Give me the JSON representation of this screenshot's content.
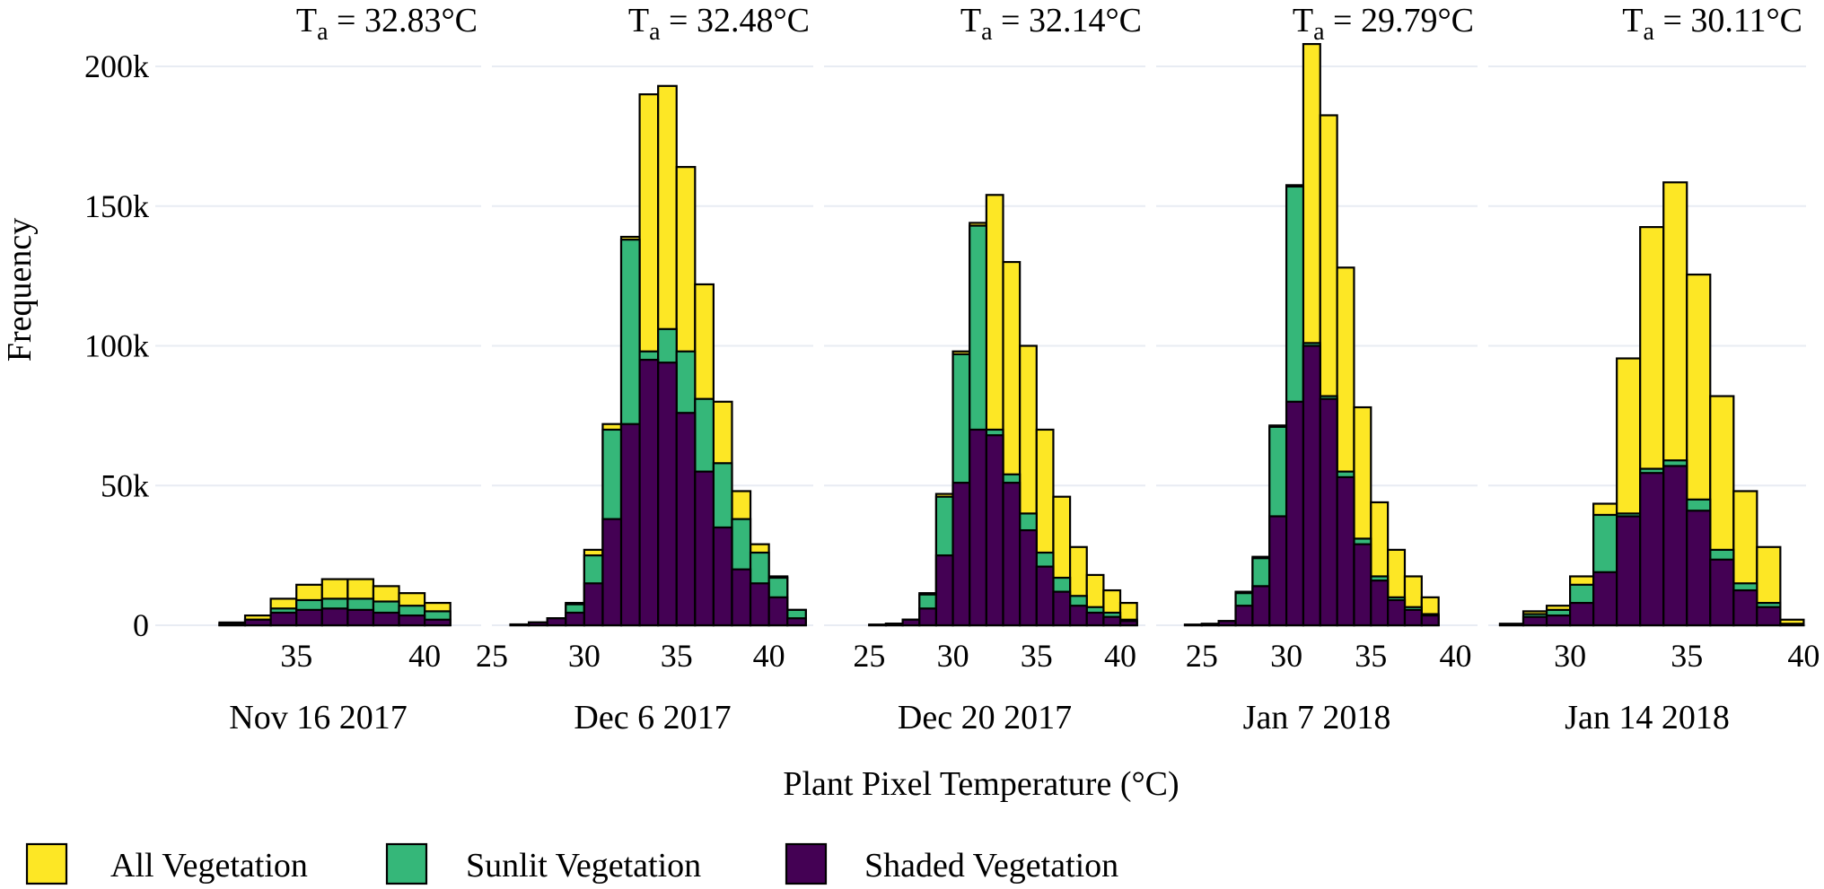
{
  "chart_data": {
    "type": "bar",
    "subtype": "overlaid-histogram",
    "xlabel": "Plant Pixel Temperature (°C)",
    "ylabel": "Frequency",
    "ylim": [
      0,
      210000
    ],
    "yticks": [
      0,
      50000,
      100000,
      150000,
      200000
    ],
    "ytick_labels": [
      "0",
      "50k",
      "100k",
      "150k",
      "200k"
    ],
    "bin_width": 1,
    "legend": [
      {
        "name": "All Vegetation",
        "color": "#fde725"
      },
      {
        "name": "Sunlit Vegetation",
        "color": "#35b779"
      },
      {
        "name": "Shaded Vegetation",
        "color": "#440154"
      }
    ],
    "panels": [
      {
        "date": "Nov 16 2017",
        "ta_prefix": "T",
        "ta_sub": "a",
        "ta_value": " = 32.83°C",
        "xlim": [
          29.5,
          42.2
        ],
        "xticks": [
          35,
          40
        ],
        "bin_starts": [
          30,
          31,
          32,
          33,
          34,
          35,
          36,
          37,
          38,
          39,
          40,
          41
        ],
        "all": [
          0,
          0,
          1000,
          3500,
          9500,
          14500,
          16500,
          16500,
          14000,
          11500,
          8000,
          0
        ],
        "sunlit": [
          0,
          0,
          500,
          2000,
          6000,
          9000,
          9500,
          9500,
          8500,
          7000,
          5000,
          0
        ],
        "shaded": [
          0,
          0,
          500,
          2000,
          4500,
          5500,
          6000,
          5500,
          4500,
          3500,
          2000,
          0
        ]
      },
      {
        "date": "Dec 6 2017",
        "ta_prefix": "T",
        "ta_sub": "a",
        "ta_value": " = 32.48°C",
        "xlim": [
          25,
          42.4
        ],
        "xticks": [
          25,
          30,
          35,
          40
        ],
        "bin_starts": [
          26,
          27,
          28,
          29,
          30,
          31,
          32,
          33,
          34,
          35,
          36,
          37,
          38,
          39,
          40,
          41
        ],
        "all": [
          300,
          1000,
          2500,
          8000,
          27000,
          72000,
          139000,
          190000,
          193000,
          164000,
          122000,
          80000,
          48000,
          29000,
          17500,
          5500
        ],
        "sunlit": [
          300,
          1000,
          2500,
          7500,
          25000,
          70000,
          138000,
          98000,
          106000,
          98000,
          81000,
          58000,
          38000,
          26000,
          17000,
          5500
        ],
        "shaded": [
          300,
          1000,
          2500,
          4500,
          15000,
          38000,
          72000,
          95000,
          94000,
          76000,
          55000,
          35000,
          20000,
          15000,
          10000,
          2500
        ]
      },
      {
        "date": "Dec 20 2017",
        "ta_prefix": "T",
        "ta_sub": "a",
        "ta_value": " = 32.14°C",
        "xlim": [
          22.3,
          41.5
        ],
        "xticks": [
          25,
          30,
          35,
          40
        ],
        "bin_starts": [
          23,
          24,
          25,
          26,
          27,
          28,
          29,
          30,
          31,
          32,
          33,
          34,
          35,
          36,
          37,
          38,
          39,
          40
        ],
        "all": [
          0,
          0,
          200,
          600,
          2000,
          11500,
          47000,
          98000,
          144000,
          154000,
          130000,
          100000,
          70000,
          46000,
          28000,
          18000,
          12500,
          8000
        ],
        "sunlit": [
          0,
          0,
          200,
          600,
          2000,
          11000,
          46000,
          97000,
          143000,
          70000,
          54000,
          40000,
          26000,
          17000,
          10500,
          6500,
          4500,
          2000
        ],
        "shaded": [
          0,
          0,
          200,
          600,
          2000,
          6000,
          25000,
          51000,
          70000,
          68000,
          51000,
          34000,
          21000,
          12000,
          7000,
          4500,
          3000,
          1500
        ]
      },
      {
        "date": "Jan 7 2018",
        "ta_prefix": "T",
        "ta_sub": "a",
        "ta_value": " = 29.79°C",
        "xlim": [
          22.3,
          41.3
        ],
        "xticks": [
          25,
          30,
          35,
          40
        ],
        "bin_starts": [
          23,
          24,
          25,
          26,
          27,
          28,
          29,
          30,
          31,
          32,
          33,
          34,
          35,
          36,
          37,
          38
        ],
        "all": [
          0,
          200,
          500,
          1500,
          12000,
          24500,
          71500,
          157500,
          208000,
          182500,
          128000,
          78000,
          44000,
          27000,
          17500,
          10000
        ],
        "sunlit": [
          0,
          200,
          500,
          1500,
          11500,
          24000,
          71000,
          157000,
          101000,
          82000,
          55000,
          31000,
          17500,
          10000,
          6500,
          4000
        ],
        "shaded": [
          0,
          200,
          500,
          1500,
          7000,
          14000,
          39000,
          80000,
          100000,
          81000,
          53000,
          29000,
          16000,
          9000,
          5500,
          3500
        ]
      },
      {
        "date": "Jan 14 2018",
        "ta_prefix": "T",
        "ta_sub": "a",
        "ta_value": " = 30.11°C",
        "xlim": [
          26.5,
          40.1
        ],
        "xticks": [
          30,
          35,
          40
        ],
        "bin_starts": [
          27,
          28,
          29,
          30,
          31,
          32,
          33,
          34,
          35,
          36,
          37,
          38,
          39
        ],
        "all": [
          500,
          5000,
          7000,
          17500,
          43500,
          95500,
          142500,
          158500,
          125500,
          82000,
          48000,
          28000,
          2000
        ],
        "sunlit": [
          500,
          4000,
          5500,
          14500,
          39500,
          40000,
          56000,
          59000,
          45000,
          27000,
          15000,
          8000,
          500
        ],
        "shaded": [
          500,
          3000,
          3500,
          8000,
          19000,
          39000,
          54500,
          57000,
          41000,
          23500,
          12500,
          6500,
          500
        ]
      }
    ]
  }
}
